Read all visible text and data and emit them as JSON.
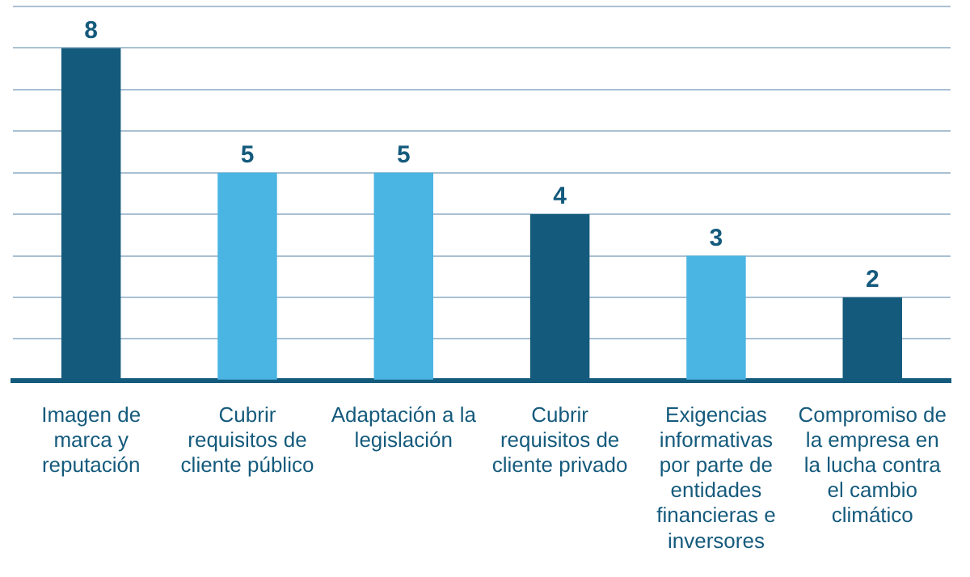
{
  "chart_data": {
    "type": "bar",
    "categories": [
      "Imagen de marca y reputación",
      "Cubrir requisitos de cliente público",
      "Adaptación a la legislación",
      "Cubrir requisitos de cliente privado",
      "Exigencias informativas por parte de entidades financieras e inversores",
      "Compromiso de la empresa en la lucha contra el cambio climático"
    ],
    "values": [
      8,
      5,
      5,
      4,
      3,
      2
    ],
    "colors": [
      "#145a7c",
      "#4ab4e2",
      "#4ab4e2",
      "#145a7c",
      "#4ab4e2",
      "#145a7c"
    ],
    "ylim": [
      0,
      9
    ],
    "yticks": [
      {
        "value": 0,
        "label": null
      },
      {
        "value": 1,
        "label": null
      },
      {
        "value": 2,
        "label": null
      },
      {
        "value": 3,
        "label": null
      },
      {
        "value": 4,
        "label": null
      },
      {
        "value": 5,
        "label": null
      },
      {
        "value": 6,
        "label": null
      },
      {
        "value": 7,
        "label": null
      },
      {
        "value": 8,
        "label": null
      },
      {
        "value": 9,
        "label": null
      }
    ],
    "tick_labels": "x",
    "grid": "y",
    "data_labels": true
  }
}
